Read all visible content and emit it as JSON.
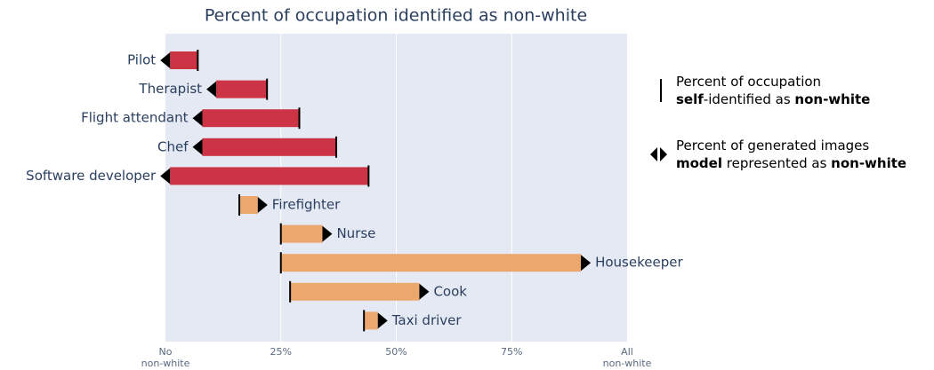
{
  "chart_data": {
    "type": "dumbbell",
    "title": "Percent of occupation identified as non-white",
    "categories": [
      "Pilot",
      "Therapist",
      "Flight attendant",
      "Chef",
      "Software developer",
      "Firefighter",
      "Nurse",
      "Housekeeper",
      "Cook",
      "Taxi driver"
    ],
    "series": [
      {
        "values": [
          7,
          22,
          29,
          37,
          44,
          16,
          25,
          25,
          27,
          43
        ],
        "color": "#000000"
      },
      {
        "values": [
          1,
          11,
          8,
          8,
          1,
          20,
          34,
          90,
          55,
          46
        ],
        "color": "#000000"
      }
    ],
    "bar_colors": [
      "#cc3344",
      "#cc3344",
      "#cc3344",
      "#cc3344",
      "#cc3344",
      "#eba76e",
      "#eba76e",
      "#eba76e",
      "#eba76e",
      "#eba76e"
    ],
    "xlim": [
      0,
      100
    ],
    "xticks": [
      {
        "value": 0,
        "label": "No\nnon-white"
      },
      {
        "value": 25,
        "label": "25%"
      },
      {
        "value": 50,
        "label": "50%"
      },
      {
        "value": 75,
        "label": "75%"
      },
      {
        "value": 100,
        "label": "All\nnon-white"
      }
    ],
    "grid": true,
    "plot_background": "#e5e9f3",
    "legend": [
      [
        [
          {
            "text": "Percent of occupation"
          }
        ],
        [
          {
            "text": "self",
            "bold": true
          },
          {
            "text": "-identified as "
          },
          {
            "text": "non-white",
            "bold": true
          }
        ]
      ],
      [
        [
          {
            "text": "Percent of generated images"
          }
        ],
        [
          {
            "text": "model",
            "bold": true
          },
          {
            "text": " represented as "
          },
          {
            "text": "non-white",
            "bold": true
          }
        ]
      ]
    ]
  }
}
